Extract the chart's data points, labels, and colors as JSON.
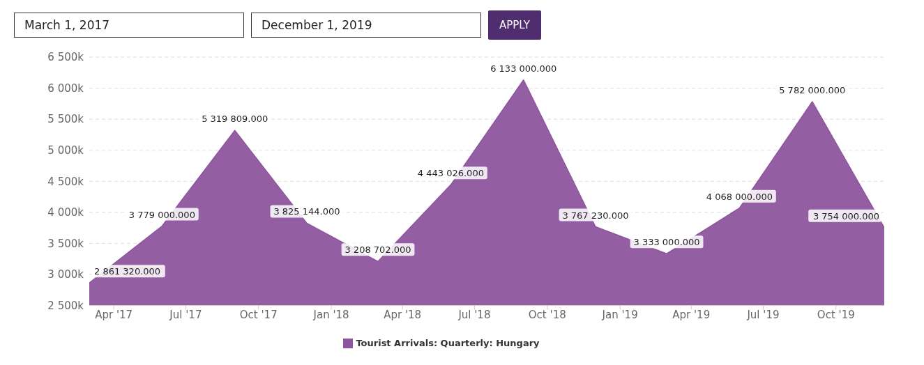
{
  "chart_data": {
    "type": "area",
    "annotations": [
      "March 1, 2017",
      "December 1, 2019",
      "APPLY"
    ],
    "x": [
      "2017-03",
      "2017-06",
      "2017-09",
      "2017-12",
      "2018-03",
      "2018-06",
      "2018-09",
      "2018-12",
      "2019-03",
      "2019-06",
      "2019-09",
      "2019-12"
    ],
    "series": [
      {
        "name": "Tourist Arrivals: Quarterly: Hungary",
        "color": "#8e559e",
        "values": [
          2861320,
          3779000,
          5319809,
          3825144,
          3208702,
          4443026,
          6133000,
          3767230,
          3333000,
          4068000,
          5782000,
          3754000
        ],
        "value_labels": [
          "2 861 320.000",
          "3 779 000.000",
          "5 319 809.000",
          "3 825 144.000",
          "3 208 702.000",
          "4 443 026.000",
          "6 133 000.000",
          "3 767 230.000",
          "3 333 000.000",
          "4 068 000.000",
          "5 782 000.000",
          "3 754 000.000"
        ]
      }
    ],
    "xlim": [
      "2017-03",
      "2019-12"
    ],
    "xticks": [
      {
        "value": "2017-04",
        "label": "Apr '17"
      },
      {
        "value": "2017-07",
        "label": "Jul '17"
      },
      {
        "value": "2017-10",
        "label": "Oct '17"
      },
      {
        "value": "2018-01",
        "label": "Jan '18"
      },
      {
        "value": "2018-04",
        "label": "Apr '18"
      },
      {
        "value": "2018-07",
        "label": "Jul '18"
      },
      {
        "value": "2018-10",
        "label": "Oct '18"
      },
      {
        "value": "2019-01",
        "label": "Jan '19"
      },
      {
        "value": "2019-04",
        "label": "Apr '19"
      },
      {
        "value": "2019-07",
        "label": "Jul '19"
      },
      {
        "value": "2019-10",
        "label": "Oct '19"
      }
    ],
    "ylim": [
      2500000,
      6500000
    ],
    "yticks": [
      {
        "value": 2500000,
        "label": "2 500k"
      },
      {
        "value": 3000000,
        "label": "3 000k"
      },
      {
        "value": 3500000,
        "label": "3 500k"
      },
      {
        "value": 4000000,
        "label": "4 000k"
      },
      {
        "value": 4500000,
        "label": "4 500k"
      },
      {
        "value": 5000000,
        "label": "5 000k"
      },
      {
        "value": 5500000,
        "label": "5 500k"
      },
      {
        "value": 6000000,
        "label": "6 000k"
      },
      {
        "value": 6500000,
        "label": "6 500k"
      }
    ],
    "grid": "y",
    "legend": "bottom"
  }
}
